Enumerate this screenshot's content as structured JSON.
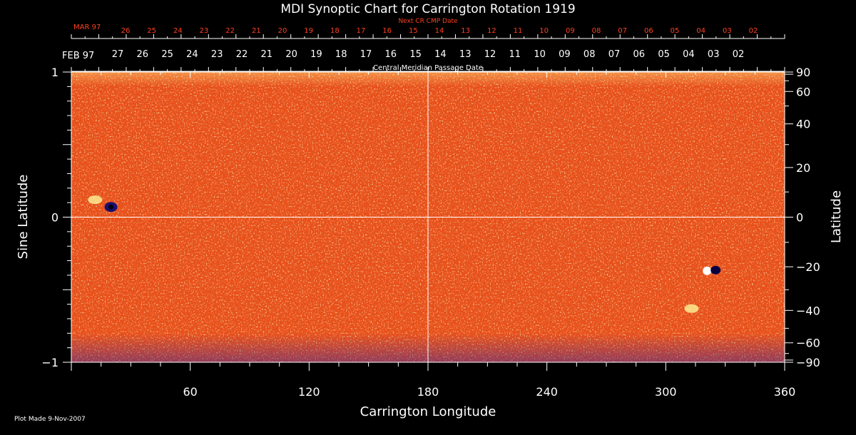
{
  "chart_data": {
    "type": "heatmap",
    "title": "MDI Synoptic Chart for Carrington Rotation 1919",
    "xlabel": "Carrington Longitude",
    "ylabel_left": "Sine Latitude",
    "ylabel_right": "Latitude",
    "xlim": [
      0,
      360
    ],
    "ylim": [
      -1,
      1
    ],
    "x_ticks": [
      60,
      120,
      180,
      240,
      300,
      360
    ],
    "y_left_ticks": [
      {
        "value": 1,
        "label": "1"
      },
      {
        "value": 0,
        "label": "0"
      },
      {
        "value": -1,
        "label": "−1"
      }
    ],
    "y_right_ticks": [
      {
        "value": 90,
        "label": "90"
      },
      {
        "value": 60,
        "label": "60"
      },
      {
        "value": 40,
        "label": "40"
      },
      {
        "value": 20,
        "label": "20"
      },
      {
        "value": 0,
        "label": "0"
      },
      {
        "value": -20,
        "label": "−20"
      },
      {
        "value": -40,
        "label": "−40"
      },
      {
        "value": -60,
        "label": "−60"
      },
      {
        "value": -90,
        "label": "−90"
      }
    ],
    "cmp_axis": {
      "caption": "Central Meridian Passage Date",
      "start_label": "FEB 97",
      "dates": [
        "27",
        "26",
        "25",
        "24",
        "23",
        "22",
        "21",
        "20",
        "19",
        "18",
        "17",
        "16",
        "15",
        "14",
        "13",
        "12",
        "11",
        "10",
        "09",
        "08",
        "07",
        "06",
        "05",
        "04",
        "03",
        "02"
      ]
    },
    "next_cr_axis": {
      "caption": "Next CR CMP Date",
      "start_label": "MAR 97",
      "dates": [
        "26",
        "25",
        "24",
        "23",
        "22",
        "21",
        "20",
        "19",
        "18",
        "17",
        "16",
        "15",
        "14",
        "13",
        "12",
        "11",
        "10",
        "09",
        "08",
        "07",
        "06",
        "05",
        "04",
        "03",
        "02"
      ]
    },
    "features": [
      {
        "lon": 20,
        "sinlat": 0.07,
        "kind": "negative-spot"
      },
      {
        "lon": 12,
        "sinlat": 0.12,
        "kind": "positive-plage"
      },
      {
        "lon": 323,
        "sinlat": -0.37,
        "kind": "bipolar-region"
      },
      {
        "lon": 313,
        "sinlat": -0.63,
        "kind": "positive-plage"
      }
    ],
    "colors": {
      "background": "#000000",
      "field_base": "#e8501a",
      "positive_field": "#ffffa0",
      "negative_field": "#1a1070",
      "axis": "#ffffff",
      "next_cr_text": "#ff4020"
    },
    "grid": "center cross"
  },
  "footer": {
    "plot_made": "Plot Made  9-Nov-2007"
  }
}
